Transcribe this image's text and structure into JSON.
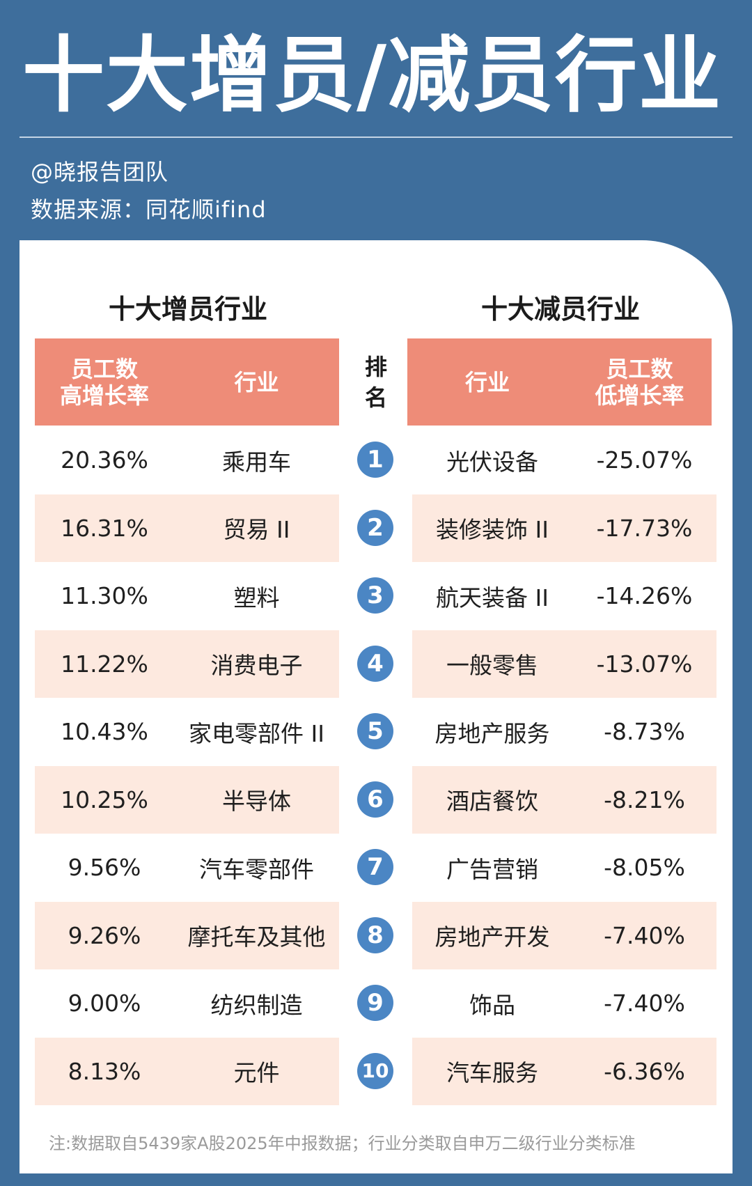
{
  "title": "十大增员/减员行业",
  "author": "@晓报告团队",
  "source": "数据来源：同花顺ifind",
  "left_title": "十大增员行业",
  "right_title": "十大减员行业",
  "left_headers": {
    "rate": [
      "员工数",
      "高增长率"
    ],
    "industry": "行业"
  },
  "rank_header": [
    "排",
    "名"
  ],
  "right_headers": {
    "industry": "行业",
    "rate": [
      "员工数",
      "低增长率"
    ]
  },
  "rows": [
    {
      "rank": "1",
      "inc_rate": "20.36%",
      "inc_industry": "乘用车",
      "dec_industry": "光伏设备",
      "dec_rate": "-25.07%"
    },
    {
      "rank": "2",
      "inc_rate": "16.31%",
      "inc_industry": "贸易 II",
      "dec_industry": "装修装饰 II",
      "dec_rate": "-17.73%"
    },
    {
      "rank": "3",
      "inc_rate": "11.30%",
      "inc_industry": "塑料",
      "dec_industry": "航天装备 II",
      "dec_rate": "-14.26%"
    },
    {
      "rank": "4",
      "inc_rate": "11.22%",
      "inc_industry": "消费电子",
      "dec_industry": "一般零售",
      "dec_rate": "-13.07%"
    },
    {
      "rank": "5",
      "inc_rate": "10.43%",
      "inc_industry": "家电零部件 II",
      "dec_industry": "房地产服务",
      "dec_rate": "-8.73%"
    },
    {
      "rank": "6",
      "inc_rate": "10.25%",
      "inc_industry": "半导体",
      "dec_industry": "酒店餐饮",
      "dec_rate": "-8.21%"
    },
    {
      "rank": "7",
      "inc_rate": "9.56%",
      "inc_industry": "汽车零部件",
      "dec_industry": "广告营销",
      "dec_rate": "-8.05%"
    },
    {
      "rank": "8",
      "inc_rate": "9.26%",
      "inc_industry": "摩托车及其他",
      "dec_industry": "房地产开发",
      "dec_rate": "-7.40%"
    },
    {
      "rank": "9",
      "inc_rate": "9.00%",
      "inc_industry": "纺织制造",
      "dec_industry": "饰品",
      "dec_rate": "-7.40%"
    },
    {
      "rank": "10",
      "inc_rate": "8.13%",
      "inc_industry": "元件",
      "dec_industry": "汽车服务",
      "dec_rate": "-6.36%"
    }
  ],
  "note": "注:数据取自5439家A股2025年中报数据；行业分类取自申万二级行业分类标准",
  "colors": {
    "background": "#3e6e9c",
    "header": "#ee8c78",
    "alt_row": "#fde9df",
    "badge": "#4b86c4"
  }
}
